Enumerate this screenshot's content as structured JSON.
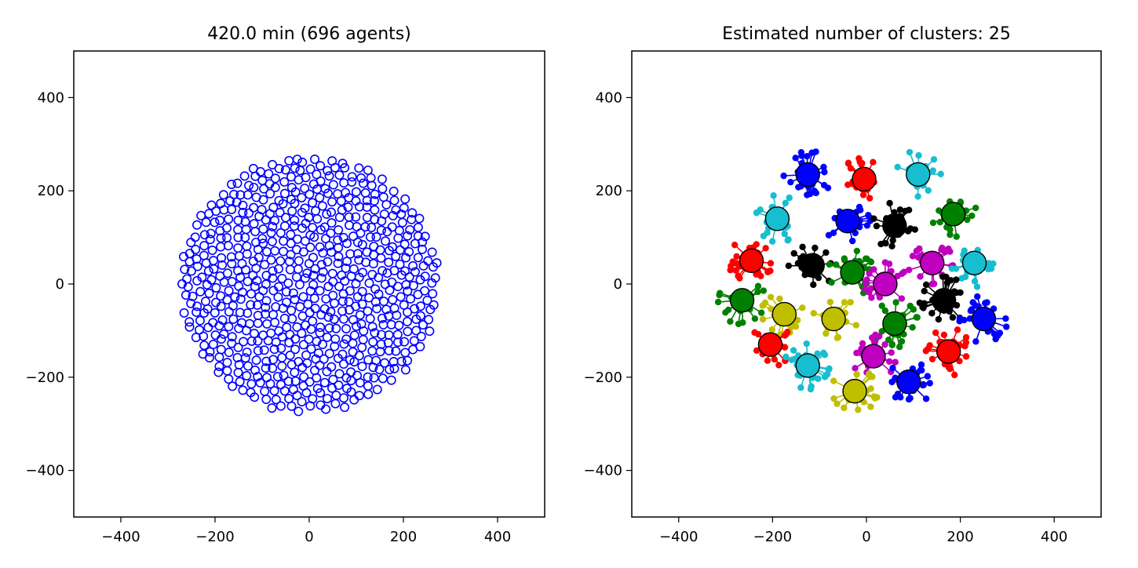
{
  "chart_data": [
    {
      "type": "scatter",
      "title": "420.0 min (696 agents)",
      "xlabel": "",
      "ylabel": "",
      "xlim": [
        -500,
        500
      ],
      "ylim": [
        -500,
        500
      ],
      "xticks": [
        -400,
        -200,
        0,
        200,
        400
      ],
      "yticks": [
        -400,
        -200,
        0,
        200,
        400
      ],
      "xtick_labels": [
        "−400",
        "−200",
        "0",
        "200",
        "400"
      ],
      "ytick_labels": [
        "−400",
        "−200",
        "0",
        "200",
        "400"
      ],
      "grid": false,
      "marker": "hollow-circle",
      "color": "#0000ff",
      "population_count": 696,
      "distribution": "uniform disc",
      "disc_center": [
        0,
        0
      ],
      "disc_radius": 275
    },
    {
      "type": "scatter",
      "title": "Estimated number of clusters: 25",
      "xlabel": "",
      "ylabel": "",
      "xlim": [
        -500,
        500
      ],
      "ylim": [
        -500,
        500
      ],
      "xticks": [
        -400,
        -200,
        0,
        200,
        400
      ],
      "yticks": [
        -400,
        -200,
        0,
        200,
        400
      ],
      "xtick_labels": [
        "−400",
        "−200",
        "0",
        "200",
        "400"
      ],
      "ytick_labels": [
        "−400",
        "−200",
        "0",
        "200",
        "400"
      ],
      "grid": false,
      "marker": "filled-dot",
      "cluster_count": 25,
      "clusters": [
        {
          "center": [
            -125,
            235
          ],
          "color": "#0000ff"
        },
        {
          "center": [
            -5,
            225
          ],
          "color": "#ff0000"
        },
        {
          "center": [
            110,
            235
          ],
          "color": "#17becf"
        },
        {
          "center": [
            -190,
            140
          ],
          "color": "#17becf"
        },
        {
          "center": [
            -40,
            135
          ],
          "color": "#0000ff"
        },
        {
          "center": [
            60,
            125
          ],
          "color": "#000000"
        },
        {
          "center": [
            185,
            150
          ],
          "color": "#008000"
        },
        {
          "center": [
            -245,
            50
          ],
          "color": "#ff0000"
        },
        {
          "center": [
            -115,
            40
          ],
          "color": "#000000"
        },
        {
          "center": [
            -30,
            25
          ],
          "color": "#008000"
        },
        {
          "center": [
            40,
            0
          ],
          "color": "#bf00bf"
        },
        {
          "center": [
            140,
            45
          ],
          "color": "#bf00bf"
        },
        {
          "center": [
            230,
            45
          ],
          "color": "#17becf"
        },
        {
          "center": [
            -265,
            -35
          ],
          "color": "#008000"
        },
        {
          "center": [
            -175,
            -65
          ],
          "color": "#bfbf00"
        },
        {
          "center": [
            -70,
            -75
          ],
          "color": "#bfbf00"
        },
        {
          "center": [
            60,
            -85
          ],
          "color": "#008000"
        },
        {
          "center": [
            165,
            -35
          ],
          "color": "#000000"
        },
        {
          "center": [
            250,
            -75
          ],
          "color": "#0000ff"
        },
        {
          "center": [
            -205,
            -130
          ],
          "color": "#ff0000"
        },
        {
          "center": [
            -125,
            -175
          ],
          "color": "#17becf"
        },
        {
          "center": [
            15,
            -155
          ],
          "color": "#bf00bf"
        },
        {
          "center": [
            175,
            -145
          ],
          "color": "#ff0000"
        },
        {
          "center": [
            -25,
            -230
          ],
          "color": "#bfbf00"
        },
        {
          "center": [
            90,
            -210
          ],
          "color": "#0000ff"
        }
      ]
    }
  ]
}
